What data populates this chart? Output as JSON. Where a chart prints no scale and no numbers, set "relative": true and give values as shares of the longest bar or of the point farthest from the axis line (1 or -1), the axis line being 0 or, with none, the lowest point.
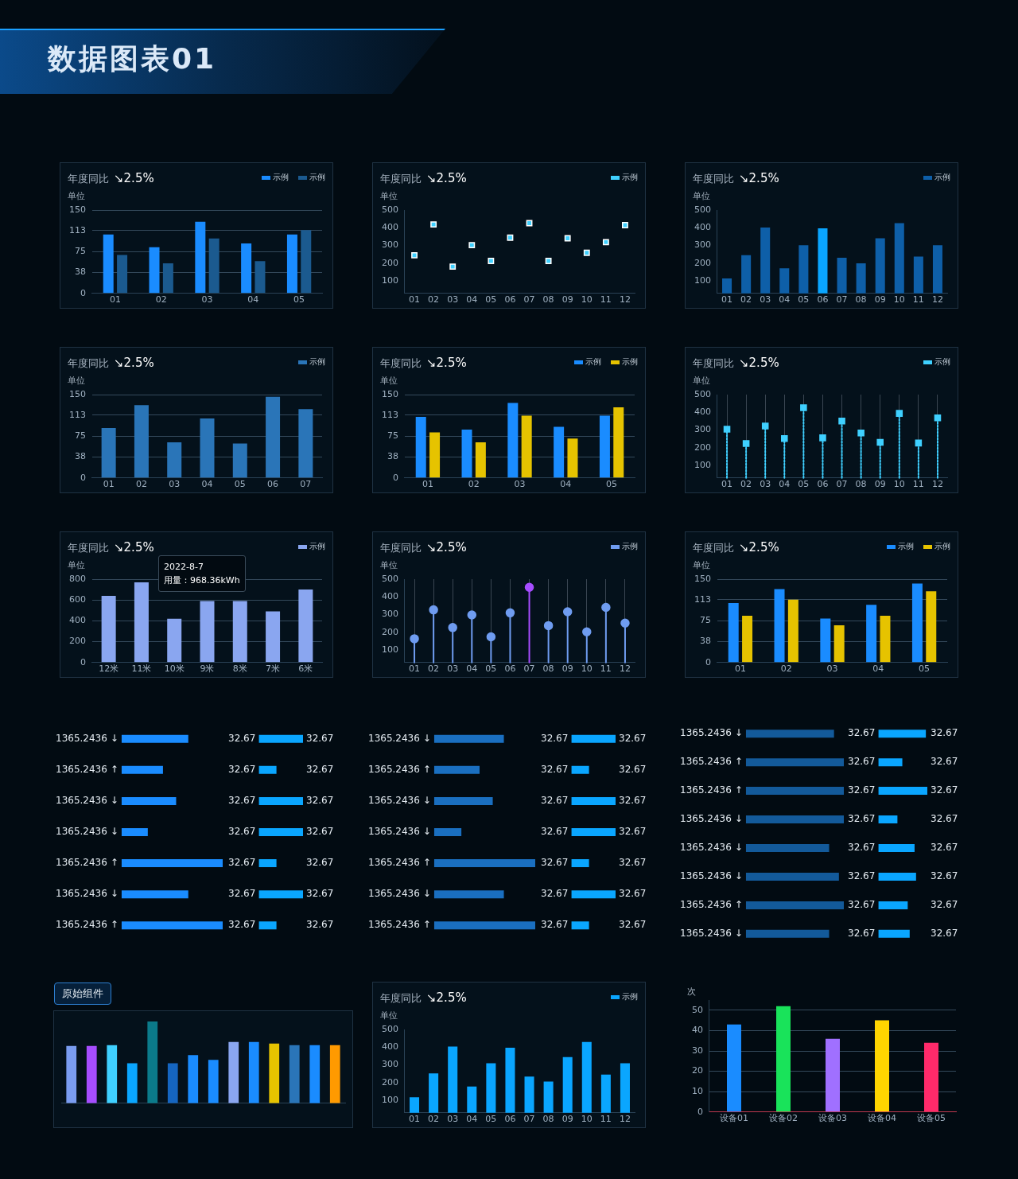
{
  "chart_data": [
    {
      "type": "other",
      "title": "数据图表01"
    },
    {
      "type": "bar",
      "title": "年度同比",
      "subtitle": "↘2.5%",
      "ylabel": "单位",
      "categories": [
        "01",
        "02",
        "03",
        "04",
        "05"
      ],
      "series": [
        {
          "name": "示例",
          "color": "#1a8cff",
          "values": [
            106,
            83,
            129,
            90,
            106
          ]
        },
        {
          "name": "示例",
          "color": "#1b5a8f",
          "values": [
            69,
            54,
            99,
            58,
            114
          ]
        }
      ],
      "ylim": [
        0,
        150
      ],
      "yticks": [
        0,
        38,
        75,
        113,
        150
      ],
      "grid": "y",
      "legend": "top right"
    },
    {
      "type": "scatter",
      "title": "年度同比",
      "subtitle": "↘2.5%",
      "ylabel": "单位",
      "categories": [
        "01",
        "02",
        "03",
        "04",
        "05",
        "06",
        "07",
        "08",
        "09",
        "10",
        "11",
        "12"
      ],
      "series": [
        {
          "name": "示例",
          "color": "#3fd0ff",
          "values": [
            245,
            419,
            181,
            302,
            213,
            344,
            426,
            213,
            341,
            259,
            319,
            415
          ]
        }
      ],
      "marker": "square",
      "ylim": [
        30,
        500
      ],
      "yticks": [
        100,
        200,
        300,
        400,
        500
      ],
      "legend": "top right"
    },
    {
      "type": "bar",
      "title": "年度同比",
      "subtitle": "↘2.5%",
      "ylabel": "单位",
      "categories": [
        "01",
        "02",
        "03",
        "04",
        "05",
        "06",
        "07",
        "08",
        "09",
        "10",
        "11",
        "12"
      ],
      "series": [
        {
          "name": "示例",
          "color": "#0e5fa8",
          "colors": [
            "#0e5fa8",
            "#0e5fa8",
            "#0e5fa8",
            "#0e5fa8",
            "#0e5fa8",
            "#0aa5ff",
            "#0e5fa8",
            "#0e5fa8",
            "#0e5fa8",
            "#0e5fa8",
            "#0e5fa8",
            "#0e5fa8"
          ],
          "values": [
            114,
            245,
            401,
            171,
            302,
            397,
            231,
            199,
            341,
            426,
            238,
            302
          ]
        }
      ],
      "ylim": [
        30,
        500
      ],
      "yticks": [
        100,
        200,
        300,
        400,
        500
      ],
      "legend": "top right"
    },
    {
      "type": "bar",
      "title": "年度同比",
      "subtitle": "↘2.5%",
      "ylabel": "单位",
      "categories": [
        "01",
        "02",
        "03",
        "04",
        "05",
        "06",
        "07"
      ],
      "series": [
        {
          "name": "示例",
          "color": "#2a75b8",
          "values": [
            90,
            131,
            64,
            107,
            62,
            146,
            124
          ]
        }
      ],
      "ylim": [
        0,
        150
      ],
      "yticks": [
        0,
        38,
        75,
        113,
        150
      ],
      "grid": "y",
      "legend": "top right"
    },
    {
      "type": "bar",
      "title": "年度同比",
      "subtitle": "↘2.5%",
      "ylabel": "单位",
      "categories": [
        "01",
        "02",
        "03",
        "04",
        "05"
      ],
      "series": [
        {
          "name": "示例",
          "color": "#1a8cff",
          "values": [
            110,
            87,
            135,
            92,
            112
          ]
        },
        {
          "name": "示例",
          "color": "#e6c300",
          "values": [
            82,
            64,
            112,
            71,
            127
          ]
        }
      ],
      "ylim": [
        0,
        150
      ],
      "yticks": [
        0,
        38,
        75,
        113,
        150
      ],
      "grid": "y",
      "legend": "top right"
    },
    {
      "type": "lollipop",
      "title": "年度同比",
      "subtitle": "↘2.5%",
      "ylabel": "单位",
      "categories": [
        "01",
        "02",
        "03",
        "04",
        "05",
        "06",
        "07",
        "08",
        "09",
        "10",
        "11",
        "12"
      ],
      "series": [
        {
          "name": "示例",
          "color": "#3fd0ff",
          "values": [
            305,
            224,
            323,
            252,
            426,
            256,
            351,
            284,
            231,
            394,
            227,
            369
          ]
        }
      ],
      "marker": "square",
      "line_style": "dotted",
      "ylim": [
        30,
        500
      ],
      "yticks": [
        100,
        200,
        300,
        400,
        500
      ],
      "grid": "x",
      "legend": "top right"
    },
    {
      "type": "bar",
      "title": "年度同比",
      "subtitle": "↘2.5%",
      "ylabel": "单位",
      "categories": [
        "12米",
        "11米",
        "10米",
        "9米",
        "8米",
        "7米",
        "6米"
      ],
      "series": [
        {
          "name": "示例",
          "color": "#8aa6f0",
          "values": [
            640,
            770,
            420,
            590,
            590,
            490,
            700
          ]
        }
      ],
      "ylim": [
        0,
        800
      ],
      "yticks": [
        0,
        200,
        400,
        600,
        800
      ],
      "grid": "y",
      "legend": "top right",
      "annotations": [
        "2022-8-7\n用量：968.36kWh"
      ]
    },
    {
      "type": "lollipop",
      "title": "年度同比",
      "subtitle": "↘2.5%",
      "ylabel": "单位",
      "categories": [
        "01",
        "02",
        "03",
        "04",
        "05",
        "06",
        "07",
        "08",
        "09",
        "10",
        "11",
        "12"
      ],
      "series": [
        {
          "name": "示例",
          "color": "#6f9cf0",
          "colors": [
            "#6f9cf0",
            "#6f9cf0",
            "#6f9cf0",
            "#6f9cf0",
            "#6f9cf0",
            "#6f9cf0",
            "#a64dff",
            "#6f9cf0",
            "#6f9cf0",
            "#6f9cf0",
            "#6f9cf0",
            "#6f9cf0"
          ],
          "values": [
            164,
            327,
            227,
            298,
            175,
            310,
            454,
            238,
            316,
            203,
            341,
            252
          ]
        }
      ],
      "marker": "circle",
      "line_style": "solid",
      "ylim": [
        30,
        500
      ],
      "yticks": [
        100,
        200,
        300,
        400,
        500
      ],
      "grid": "x",
      "legend": "top right"
    },
    {
      "type": "bar",
      "title": "年度同比",
      "subtitle": "↘2.5%",
      "ylabel": "单位",
      "categories": [
        "01",
        "02",
        "03",
        "04",
        "05"
      ],
      "series": [
        {
          "name": "示例",
          "color": "#1a8cff",
          "values": [
            107,
            132,
            79,
            104,
            142
          ]
        },
        {
          "name": "示例",
          "color": "#e6c300",
          "values": [
            84,
            113,
            67,
            84,
            128
          ]
        }
      ],
      "ylim": [
        0,
        150
      ],
      "yticks": [
        0,
        38,
        75,
        113,
        150
      ],
      "grid": "y",
      "legend": "top right"
    },
    {
      "type": "bar",
      "orientation": "horizontal",
      "relative": true,
      "categories": [
        "1365.2436 ↓",
        "1365.2436 ↑",
        "1365.2436 ↓",
        "1365.2436 ↓",
        "1365.2436 ↑",
        "1365.2436 ↓",
        "1365.2436 ↑"
      ],
      "color": "#1a8cff",
      "values": [
        0.66,
        0.41,
        0.54,
        0.26,
        1,
        0.66,
        1
      ]
    },
    {
      "type": "bar",
      "orientation": "horizontal",
      "relative": true,
      "categories": [
        "32.67",
        "32.67",
        "32.67",
        "32.67",
        "32.67",
        "32.67",
        "32.67"
      ],
      "color": "#0aa6ff",
      "values": [
        1,
        0.4,
        1,
        1,
        0.4,
        1,
        0.4
      ],
      "annotations": [
        "32.67",
        "32.67",
        "32.67",
        "32.67",
        "32.67",
        "32.67",
        "32.67"
      ]
    },
    {
      "type": "bar",
      "orientation": "horizontal",
      "relative": true,
      "categories": [
        "1365.2436 ↓",
        "1365.2436 ↑",
        "1365.2436 ↓",
        "1365.2436 ↓",
        "1365.2436 ↑",
        "1365.2436 ↓",
        "1365.2436 ↑"
      ],
      "color": "#1a6fc0",
      "values": [
        0.69,
        0.45,
        0.58,
        0.27,
        1,
        0.69,
        1
      ]
    },
    {
      "type": "bar",
      "orientation": "horizontal",
      "relative": true,
      "categories": [
        "32.67",
        "32.67",
        "32.67",
        "32.67",
        "32.67",
        "32.67",
        "32.67"
      ],
      "color": "#0aa6ff",
      "values": [
        1,
        0.4,
        1,
        1,
        0.4,
        1,
        0.4
      ],
      "annotations": [
        "32.67",
        "32.67",
        "32.67",
        "32.67",
        "32.67",
        "32.67",
        "32.67"
      ]
    },
    {
      "type": "bar",
      "orientation": "horizontal",
      "relative": true,
      "categories": [
        "1365.2436 ↓",
        "1365.2436 ↑",
        "1365.2436 ↑",
        "1365.2436 ↓",
        "1365.2436 ↓",
        "1365.2436 ↓",
        "1365.2436 ↑",
        "1365.2436 ↓"
      ],
      "color": "#135a9a",
      "values": [
        0.9,
        1,
        1,
        1,
        0.85,
        0.95,
        1,
        0.85
      ]
    },
    {
      "type": "bar",
      "orientation": "horizontal",
      "relative": true,
      "categories": [
        "32.67",
        "32.67",
        "32.67",
        "32.67",
        "32.67",
        "32.67",
        "32.67",
        "32.67"
      ],
      "color": "#0aa6ff",
      "values": [
        0.97,
        0.49,
        1,
        0.39,
        0.74,
        0.77,
        0.6,
        0.64
      ],
      "annotations": [
        "32.67",
        "32.67",
        "32.67",
        "32.67",
        "32.67",
        "32.67",
        "32.67",
        "32.67"
      ]
    },
    {
      "type": "bar",
      "title": "原始组件",
      "relative": true,
      "categories": [
        null,
        null,
        null,
        null,
        null,
        null,
        null,
        null,
        null,
        null,
        null,
        null,
        null,
        null
      ],
      "colors": [
        "#7a9cf0",
        "#a64dff",
        "#3fd0ff",
        "#0aa6ff",
        "#0b7a8a",
        "#1565c0",
        "#1a8cff",
        "#1a8cff",
        "#8aa6f0",
        "#1a8cff",
        "#e6c300",
        "#2a75b8",
        "#1a8cff",
        "#ff9a00"
      ],
      "values": [
        0.7,
        0.7,
        0.71,
        0.49,
        1,
        0.49,
        0.59,
        0.53,
        0.75,
        0.75,
        0.73,
        0.71,
        0.71,
        0.71
      ]
    },
    {
      "type": "bar",
      "title": "年度同比",
      "subtitle": "↘2.5%",
      "ylabel": "单位",
      "categories": [
        "01",
        "02",
        "03",
        "04",
        "05",
        "06",
        "07",
        "08",
        "09",
        "10",
        "11",
        "12"
      ],
      "series": [
        {
          "name": "示例",
          "color": "#0aa6ff",
          "values": [
            118,
            252,
            404,
            178,
            309,
            397,
            234,
            206,
            344,
            429,
            245,
            309
          ]
        }
      ],
      "ylim": [
        30,
        500
      ],
      "yticks": [
        100,
        200,
        300,
        400,
        500
      ],
      "legend": "top right"
    },
    {
      "type": "bar",
      "ylabel": "次",
      "categories": [
        "设备01",
        "设备02",
        "设备03",
        "设备04",
        "设备05"
      ],
      "colors": [
        "#1a8cff",
        "#19e35a",
        "#a070ff",
        "#ffd500",
        "#ff2a6a"
      ],
      "values": [
        43,
        52,
        36,
        45,
        34
      ],
      "ylim": [
        0,
        55
      ],
      "yticks": [
        0,
        10,
        20,
        30,
        40,
        50
      ],
      "grid": "y"
    }
  ]
}
